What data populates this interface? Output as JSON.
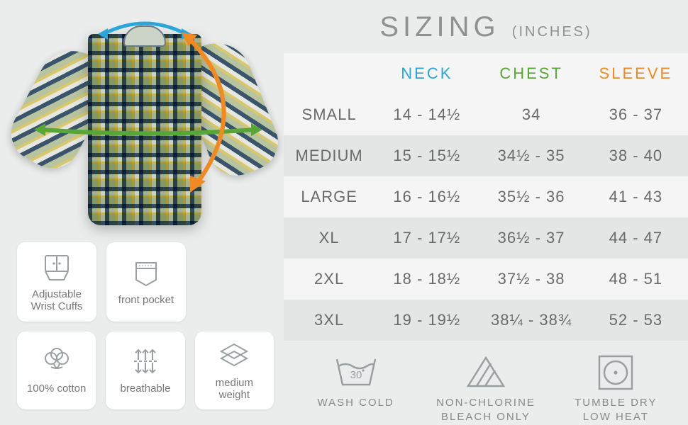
{
  "colors": {
    "background": "#ebedec",
    "panel": "#ffffff",
    "text": "#6a6a6a",
    "muted": "#888888",
    "table_row_light": "#f4f5f4",
    "table_row_dark": "#e4e6e5",
    "neck_accent": "#2aa6d9",
    "chest_accent": "#58a638",
    "sleeve_accent": "#ef8a24",
    "icon_stroke": "#9aa0a2"
  },
  "shirt": {
    "plaid_colors": [
      "#3a556b",
      "#b8c4a0",
      "#d9c76b",
      "#e5e7e0"
    ],
    "arrow_neck_color": "#2aa6d9",
    "arrow_chest_color": "#58a638",
    "arrow_sleeve_color": "#ef8a24"
  },
  "features": {
    "row1": [
      {
        "name": "cuffs",
        "icon": "cuff-icon",
        "label": "Adjustable\nWrist Cuffs"
      },
      {
        "name": "pocket",
        "icon": "pocket-icon",
        "label": "front pocket"
      }
    ],
    "row2": [
      {
        "name": "cotton",
        "icon": "cotton-icon",
        "label": "100% cotton"
      },
      {
        "name": "breathable",
        "icon": "breathable-icon",
        "label": "breathable"
      },
      {
        "name": "weight",
        "icon": "weight-icon",
        "label": "medium\nweight"
      }
    ]
  },
  "sizing": {
    "title": "SIZING",
    "units": "(INCHES)",
    "columns": [
      {
        "key": "neck",
        "label": "NECK",
        "color": "#2aa6d9"
      },
      {
        "key": "chest",
        "label": "CHEST",
        "color": "#58a638"
      },
      {
        "key": "sleeve",
        "label": "SLEEVE",
        "color": "#ef8a24"
      }
    ],
    "rows": [
      {
        "size": "SMALL",
        "neck": "14 - 14½",
        "chest": "34",
        "sleeve": "36 - 37"
      },
      {
        "size": "MEDIUM",
        "neck": "15 - 15½",
        "chest": "34½ - 35",
        "sleeve": "38 - 40"
      },
      {
        "size": "LARGE",
        "neck": "16 - 16½",
        "chest": "35½ - 36",
        "sleeve": "41 - 43"
      },
      {
        "size": "XL",
        "neck": "17 - 17½",
        "chest": "36½ - 37",
        "sleeve": "44 - 47"
      },
      {
        "size": "2XL",
        "neck": "18 - 18½",
        "chest": "37½ - 38",
        "sleeve": "48 - 51"
      },
      {
        "size": "3XL",
        "neck": "19 - 19½",
        "chest": "38¼ - 38¾",
        "sleeve": "52 - 53"
      }
    ]
  },
  "care": [
    {
      "name": "wash",
      "icon": "wash-icon",
      "temp": "30",
      "label": "WASH COLD"
    },
    {
      "name": "bleach",
      "icon": "bleach-icon",
      "label": "NON-CHLORINE\nBLEACH ONLY"
    },
    {
      "name": "tumble",
      "icon": "tumble-icon",
      "label": "TUMBLE DRY\nLOW HEAT"
    }
  ],
  "typography": {
    "title_fontsize": 40,
    "title_letter_spacing": 6,
    "table_cell_fontsize": 22,
    "size_label_fontsize": 17,
    "feature_label_fontsize": 15,
    "care_label_fontsize": 15
  }
}
